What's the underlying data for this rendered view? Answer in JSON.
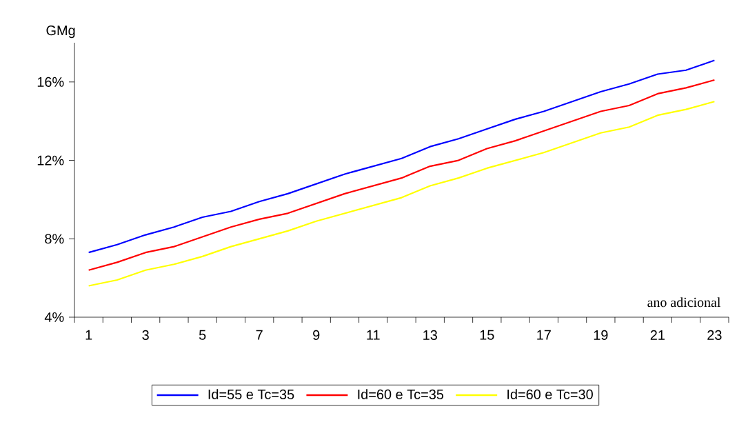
{
  "chart_data": {
    "type": "line",
    "xlabel": "ano adicional",
    "ylabel": "GMg",
    "categories": [
      "1",
      null,
      "3",
      null,
      "5",
      null,
      "7",
      null,
      "9",
      null,
      "11",
      null,
      "13",
      null,
      "15",
      null,
      "17",
      null,
      "19",
      null,
      "21",
      null,
      "23"
    ],
    "series": [
      {
        "name": "Id=55 e Tc=35",
        "color": "#0000ff",
        "values": [
          7.3,
          7.7,
          8.2,
          8.6,
          9.1,
          9.4,
          9.9,
          10.3,
          10.8,
          11.3,
          11.7,
          12.1,
          12.7,
          13.1,
          13.6,
          14.1,
          14.5,
          15.0,
          15.5,
          15.9,
          16.4,
          16.6,
          17.1
        ]
      },
      {
        "name": "Id=60 e Tc=35",
        "color": "#ff0000",
        "values": [
          6.4,
          6.8,
          7.3,
          7.6,
          8.1,
          8.6,
          9.0,
          9.3,
          9.8,
          10.3,
          10.7,
          11.1,
          11.7,
          12.0,
          12.6,
          13.0,
          13.5,
          14.0,
          14.5,
          14.8,
          15.4,
          15.7,
          16.1
        ]
      },
      {
        "name": "Id=60 e Tc=30",
        "color": "#ffff00",
        "values": [
          5.6,
          5.9,
          6.4,
          6.7,
          7.1,
          7.6,
          8.0,
          8.4,
          8.9,
          9.3,
          9.7,
          10.1,
          10.7,
          11.1,
          11.6,
          12.0,
          12.4,
          12.9,
          13.4,
          13.7,
          14.3,
          14.6,
          15.0
        ]
      }
    ],
    "ylim": [
      4,
      18
    ],
    "yticks": [
      {
        "value": 4,
        "label": "4%"
      },
      {
        "value": 8,
        "label": "8%"
      },
      {
        "value": 12,
        "label": "12%"
      },
      {
        "value": 16,
        "label": "16%"
      }
    ],
    "grid": false,
    "legend": "bottom"
  }
}
